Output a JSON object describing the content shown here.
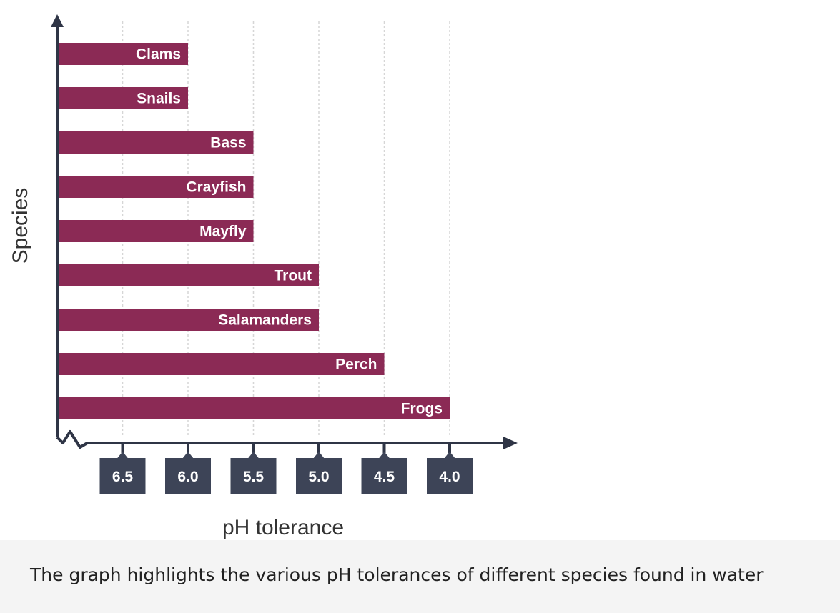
{
  "chart_data": {
    "type": "bar",
    "orientation": "horizontal",
    "categories": [
      "Clams",
      "Snails",
      "Bass",
      "Crayfish",
      "Mayfly",
      "Trout",
      "Salamanders",
      "Perch",
      "Frogs"
    ],
    "values": [
      6.0,
      6.0,
      5.5,
      5.5,
      5.5,
      5.0,
      5.0,
      4.5,
      4.0
    ],
    "xticks": [
      "6.5",
      "6.0",
      "5.5",
      "5.0",
      "4.5",
      "4.0"
    ],
    "xlabel": "pH tolerance",
    "ylabel": "Species",
    "xlim": [
      7.0,
      4.0
    ],
    "x_axis_reversed": true,
    "grid": "vertical dashed",
    "bar_color": "#8b2a55",
    "tick_box_color": "#3d4457",
    "axis_color": "#2f3546"
  },
  "caption": "The graph highlights the various pH tolerances of different species found in water"
}
